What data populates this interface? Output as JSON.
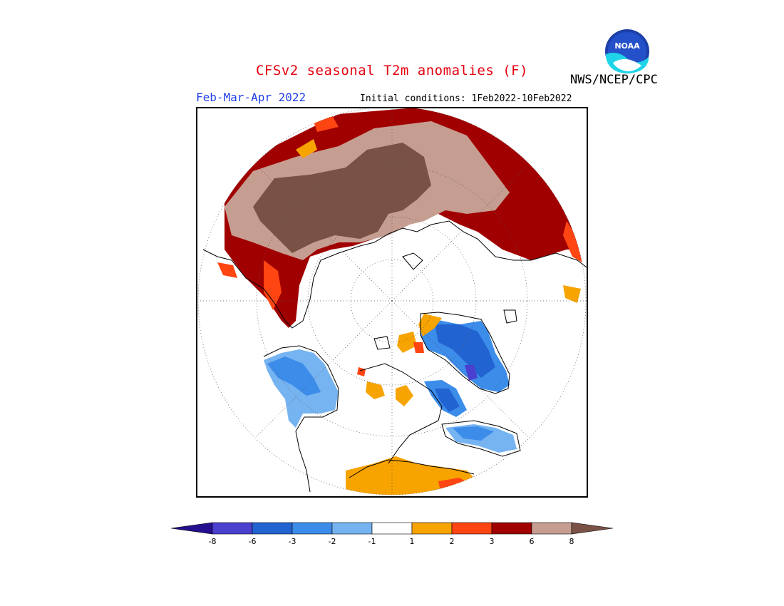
{
  "title": "CFSv2 seasonal T2m anomalies (F)",
  "period": "Feb-Mar-Apr 2022",
  "initial_conditions": "Initial conditions: 1Feb2022-10Feb2022",
  "agency": "NWS/NCEP/CPC",
  "logo_text": "NOAA",
  "colorbar": {
    "ticks": [
      "-8",
      "-6",
      "-3",
      "-2",
      "-1",
      "1",
      "2",
      "3",
      "6",
      "8"
    ],
    "colors": [
      "#250f8f",
      "#4b3fcf",
      "#2263d2",
      "#3c8cea",
      "#76b3f1",
      "#ffffff",
      "#f7a300",
      "#ff4512",
      "#a10000",
      "#c69e91",
      "#7a5245"
    ]
  },
  "map": {
    "projection": "north-polar-stereographic",
    "colors": {
      "dark_red": "#a10000",
      "tan": "#c69e91",
      "brown": "#7a5245",
      "orange": "#f7a300",
      "red_orange": "#ff4512",
      "blue_dark": "#2263d2",
      "blue_mid": "#3c8cea",
      "blue_light": "#76b3f1",
      "purple": "#4b3fcf"
    }
  }
}
